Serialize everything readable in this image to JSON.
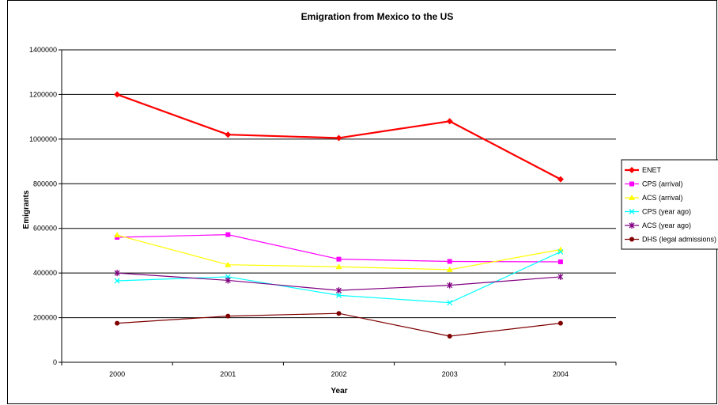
{
  "chart_data": {
    "type": "line",
    "title": "Emigration from Mexico to the US",
    "xlabel": "Year",
    "ylabel": "Emigrants",
    "categories": [
      "2000",
      "2001",
      "2002",
      "2003",
      "2004"
    ],
    "ylim": [
      0,
      1400000
    ],
    "ytick_step": 200000,
    "yticks": [
      "0",
      "200000",
      "400000",
      "600000",
      "800000",
      "1000000",
      "1200000",
      "1400000"
    ],
    "grid": "horizontal",
    "legend_position": "right",
    "series": [
      {
        "name": "ENET",
        "color": "#ff0000",
        "marker": "diamond",
        "values": [
          1200000,
          1020000,
          1005000,
          1080000,
          820000
        ]
      },
      {
        "name": "CPS (arrival)",
        "color": "#ff00ff",
        "marker": "square",
        "values": [
          560000,
          572000,
          462000,
          452000,
          450000
        ]
      },
      {
        "name": "ACS (arrival)",
        "color": "#ffff00",
        "marker": "triangle",
        "values": [
          570000,
          437000,
          428000,
          415000,
          505000
        ]
      },
      {
        "name": "CPS (year ago)",
        "color": "#00ffff",
        "marker": "x",
        "values": [
          365000,
          383000,
          300000,
          267000,
          495000
        ]
      },
      {
        "name": "ACS (year ago)",
        "color": "#800080",
        "marker": "star",
        "values": [
          400000,
          367000,
          322000,
          345000,
          383000
        ]
      },
      {
        "name": "DHS (legal admissions)",
        "color": "#800000",
        "marker": "circle",
        "values": [
          175000,
          207000,
          219000,
          117000,
          175000
        ]
      }
    ]
  }
}
